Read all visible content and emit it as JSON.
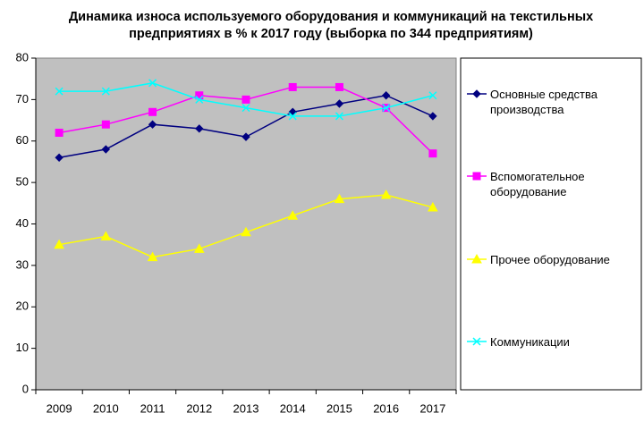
{
  "chart_data": {
    "type": "line",
    "title": "Динамика износа используемого оборудования и коммуникаций на текстильных предприятиях в % к 2017 году (выборка по 344 предприятиям)",
    "categories": [
      "2009",
      "2010",
      "2011",
      "2012",
      "2013",
      "2014",
      "2015",
      "2016",
      "2017"
    ],
    "series": [
      {
        "name": "Основные средства производства",
        "color": "#000080",
        "marker": "diamond",
        "values": [
          56,
          58,
          64,
          63,
          61,
          67,
          69,
          71,
          66
        ]
      },
      {
        "name": "Вспомогательное оборудование",
        "color": "#ff00ff",
        "marker": "square",
        "values": [
          62,
          64,
          67,
          71,
          70,
          73,
          73,
          68,
          57
        ]
      },
      {
        "name": "Прочее оборудование",
        "color": "#ffff00",
        "marker": "triangle",
        "values": [
          35,
          37,
          32,
          34,
          38,
          42,
          46,
          47,
          44
        ]
      },
      {
        "name": "Коммуникации",
        "color": "#00ffff",
        "marker": "x",
        "values": [
          72,
          72,
          74,
          70,
          68,
          66,
          66,
          68,
          71
        ]
      }
    ],
    "ylim": [
      0,
      80
    ],
    "yticks": [
      0,
      10,
      20,
      30,
      40,
      50,
      60,
      70,
      80
    ],
    "grid": false,
    "legend": "right"
  }
}
